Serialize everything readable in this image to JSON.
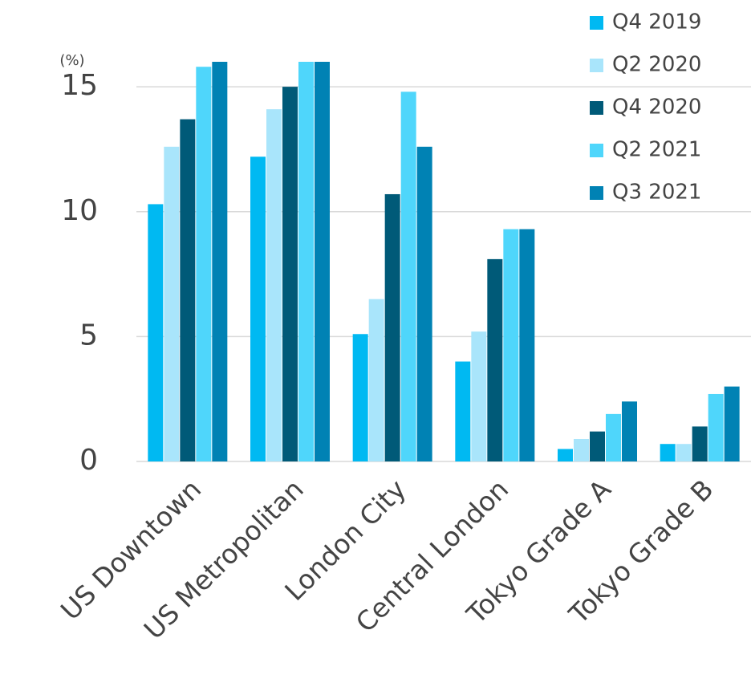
{
  "chart_data": {
    "type": "bar",
    "y_label": "(%)",
    "categories": [
      "US Downtown",
      "US Metropolitan",
      "London City",
      "Central London",
      "Tokyo Grade A",
      "Tokyo Grade B"
    ],
    "series": [
      {
        "name": "Q4 2019",
        "color": "#00b9f2",
        "values": [
          10.3,
          12.2,
          5.1,
          4.0,
          0.5,
          0.7
        ]
      },
      {
        "name": "Q2 2020",
        "color": "#a9e5fb",
        "values": [
          12.6,
          14.1,
          6.5,
          5.2,
          0.9,
          0.7
        ]
      },
      {
        "name": "Q4 2020",
        "color": "#005a78",
        "values": [
          13.7,
          15.0,
          10.7,
          8.1,
          1.2,
          1.4
        ]
      },
      {
        "name": "Q2 2021",
        "color": "#4fd6fb",
        "values": [
          15.8,
          16.0,
          14.8,
          9.3,
          1.9,
          2.7
        ]
      },
      {
        "name": "Q3 2021",
        "color": "#0082b4",
        "values": [
          16.0,
          16.0,
          12.6,
          9.3,
          2.4,
          3.0
        ]
      }
    ],
    "ylim": [
      0,
      16
    ],
    "yticks": [
      0,
      5,
      10,
      15
    ],
    "grid": true,
    "legend": "top-right"
  }
}
